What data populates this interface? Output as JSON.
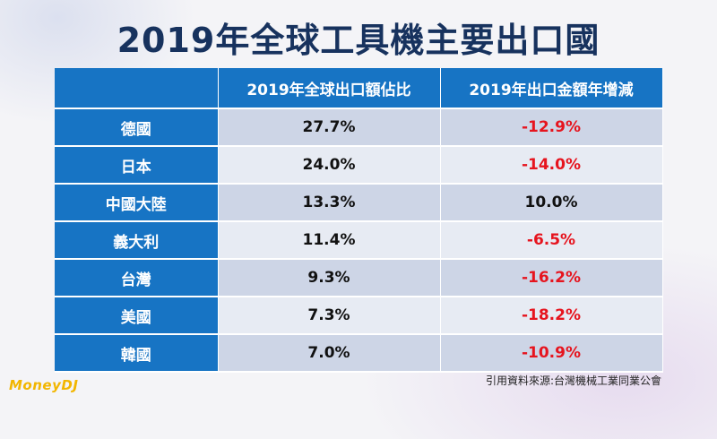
{
  "slide": {
    "title": "2019年全球工具機主要出口國",
    "source": "引用資料來源:台灣機械工業同業公會",
    "logo_text": "MoneyDJ"
  },
  "colors": {
    "header_blue": "#1774c4",
    "title_navy": "#17325e",
    "negative_red": "#e6141e",
    "row_dark": "#cdd5e6",
    "row_light": "#e7ebf3"
  },
  "chart_data": {
    "type": "table",
    "title": "2019年全球工具機主要出口國",
    "columns": [
      "",
      "2019年全球出口額佔比",
      "2019年出口金額年增減"
    ],
    "rows": [
      {
        "country": "德國",
        "share": "27.7%",
        "yoy": "-12.9%"
      },
      {
        "country": "日本",
        "share": "24.0%",
        "yoy": "-14.0%"
      },
      {
        "country": "中國大陸",
        "share": "13.3%",
        "yoy": "10.0%"
      },
      {
        "country": "義大利",
        "share": "11.4%",
        "yoy": "-6.5%"
      },
      {
        "country": "台灣",
        "share": "9.3%",
        "yoy": "-16.2%"
      },
      {
        "country": "美國",
        "share": "7.3%",
        "yoy": "-18.2%"
      },
      {
        "country": "韓國",
        "share": "7.0%",
        "yoy": "-10.9%"
      }
    ]
  }
}
